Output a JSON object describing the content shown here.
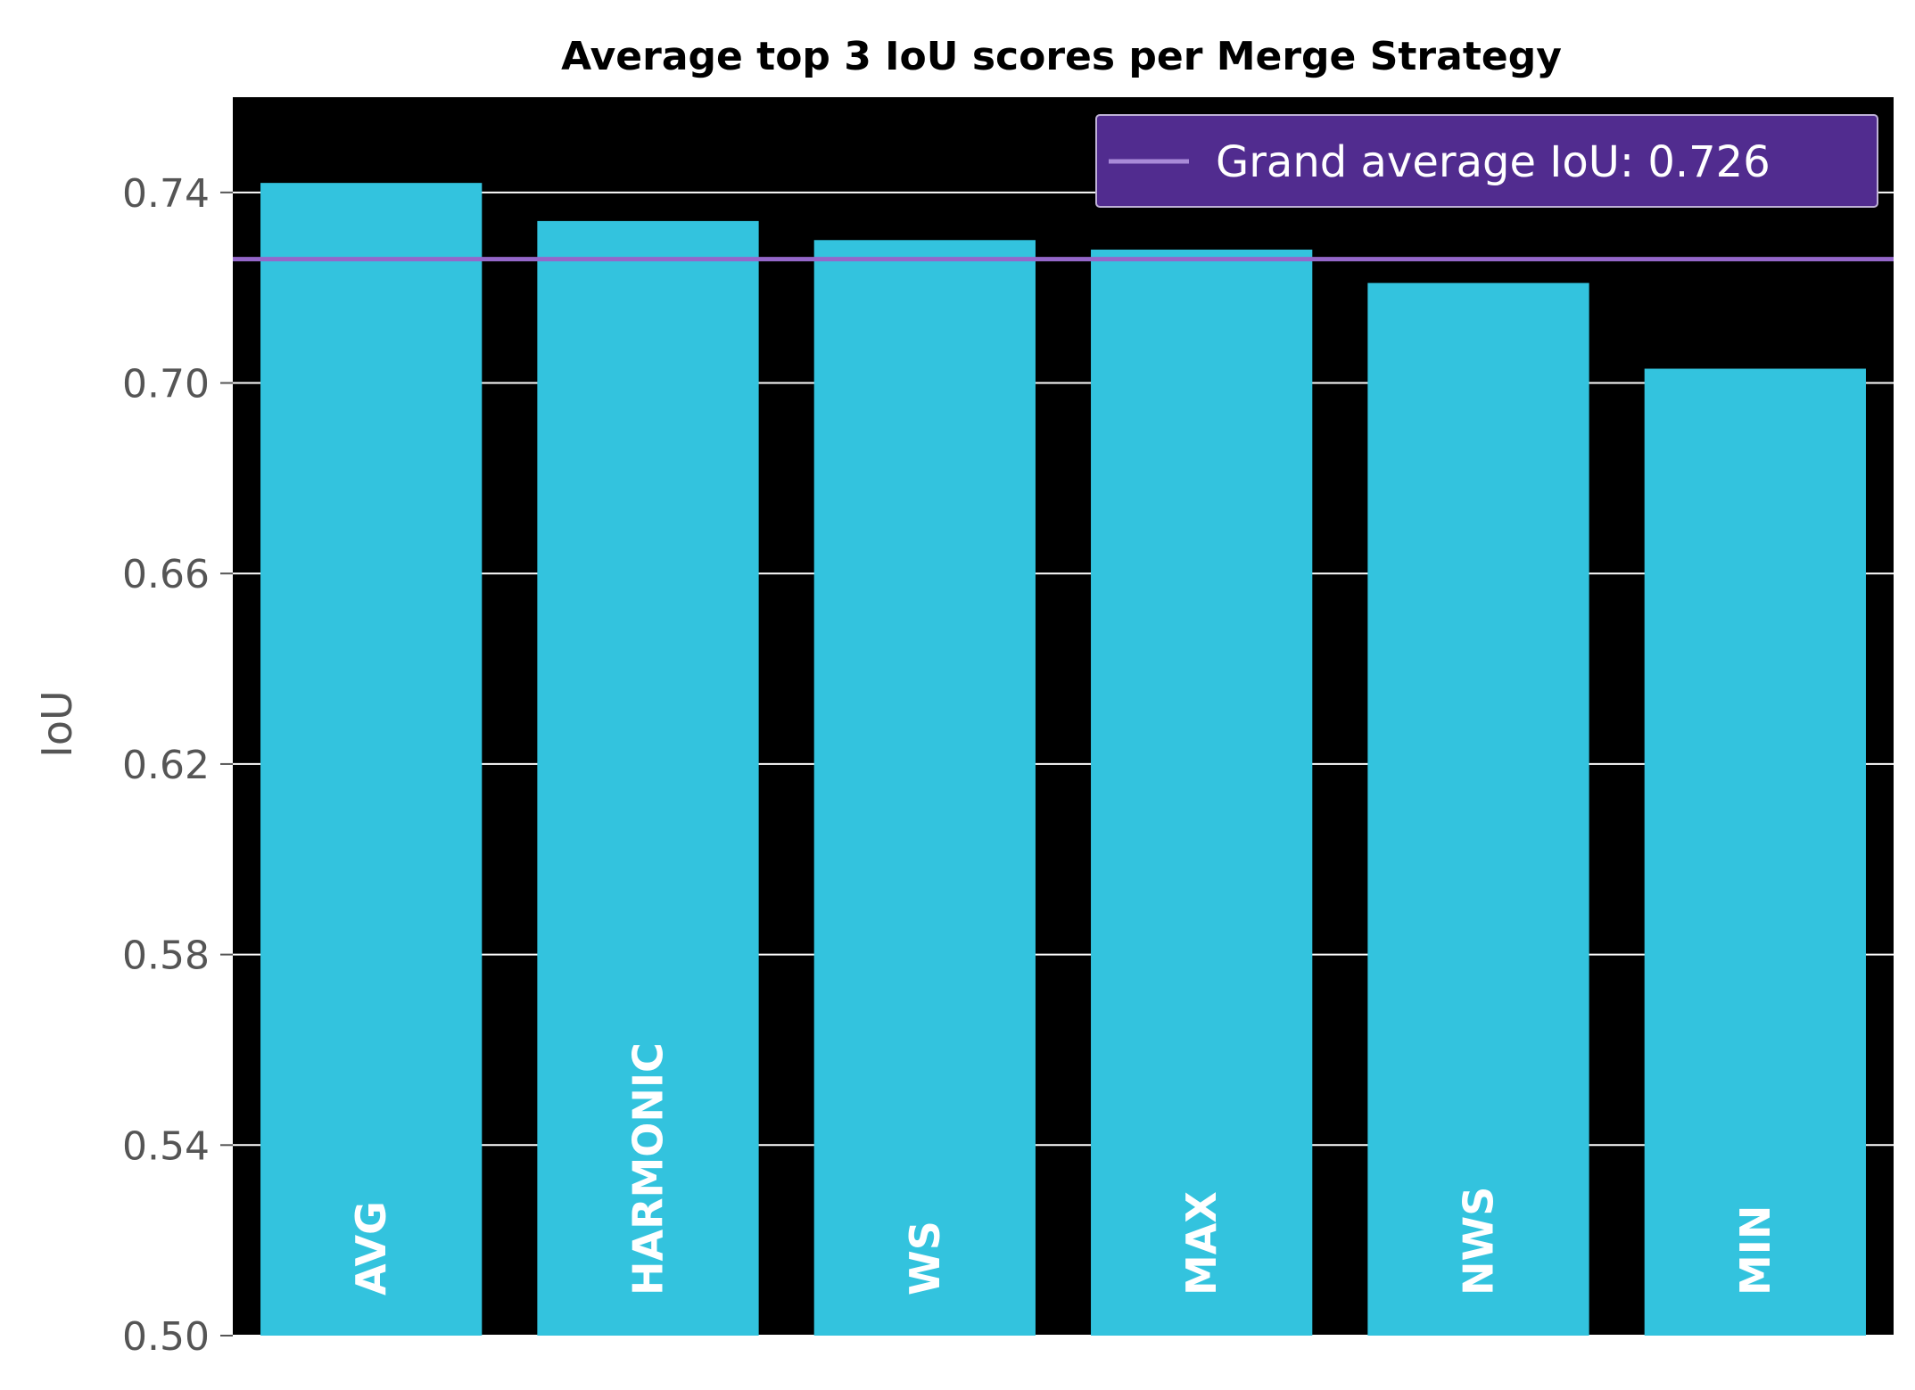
{
  "chart_data": {
    "type": "bar",
    "title": "Average top 3 IoU scores per Merge Strategy",
    "xlabel": "",
    "ylabel": "IoU",
    "ylim": [
      0.5,
      0.76
    ],
    "yticks": [
      "0.50",
      "0.54",
      "0.58",
      "0.62",
      "0.66",
      "0.70",
      "0.74"
    ],
    "categories": [
      "AVG",
      "HARMONIC",
      "WS",
      "MAX",
      "NWS",
      "MIN"
    ],
    "values": [
      0.742,
      0.734,
      0.73,
      0.728,
      0.721,
      0.703
    ],
    "reference_line": {
      "value": 0.726,
      "label": "Grand average IoU: 0.726"
    },
    "legend_position": "top-right",
    "grid": true,
    "colors": {
      "bar": "#33c3de",
      "plot_background": "#000000",
      "grid": "#ffffff",
      "reference_line": "#9467c9",
      "legend_background": "#512c8f"
    }
  }
}
